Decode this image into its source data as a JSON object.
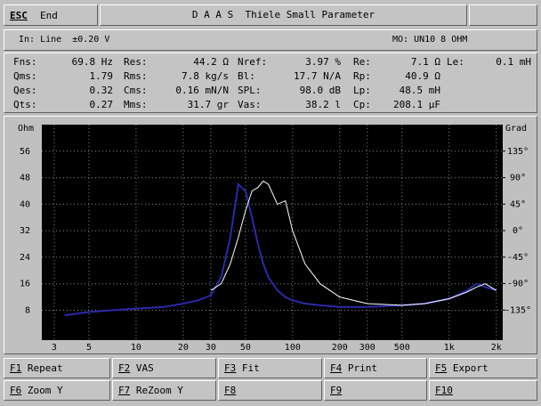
{
  "top_bar": {
    "escape_key": "ESC",
    "escape_label": "End",
    "title": "D A A S  Thiele Small Parameter"
  },
  "info_bar": {
    "input": "In: Line  ±0.20 V",
    "model": "MO: UN10 8 OHM"
  },
  "params": [
    [
      {
        "label": "Fns:",
        "value": "69.8 Hz"
      },
      {
        "label": "Res:",
        "value": "44.2 Ω"
      },
      {
        "label": "Nref:",
        "value": "3.97 %"
      },
      {
        "label": "Re:",
        "value": "7.1 Ω"
      },
      {
        "label": "Le:",
        "value": "0.1 mH"
      }
    ],
    [
      {
        "label": "Qms:",
        "value": "1.79"
      },
      {
        "label": "Rms:",
        "value": "7.8 kg/s"
      },
      {
        "label": "Bl:",
        "value": "17.7 N/A"
      },
      {
        "label": "Rp:",
        "value": "40.9 Ω"
      }
    ],
    [
      {
        "label": "Qes:",
        "value": "0.32"
      },
      {
        "label": "Cms:",
        "value": "0.16 mN/N"
      },
      {
        "label": "SPL:",
        "value": "98.0 dB"
      },
      {
        "label": "Lp:",
        "value": "48.5 mH"
      }
    ],
    [
      {
        "label": "Qts:",
        "value": "0.27"
      },
      {
        "label": "Mms:",
        "value": "31.7 gr"
      },
      {
        "label": "Vas:",
        "value": "38.2 l"
      },
      {
        "label": "Cp:",
        "value": "208.1 µF"
      }
    ]
  ],
  "chart_data": {
    "type": "line",
    "y_label": "Ohm",
    "y2_label": "Grad",
    "x_log": true,
    "grid": true,
    "xlim": [
      2.5,
      2200
    ],
    "xticks": [
      3,
      5,
      10,
      20,
      30,
      50,
      100,
      200,
      300,
      500,
      {
        "value": 1000,
        "label": "1k"
      },
      {
        "value": 2000,
        "label": "2k"
      }
    ],
    "ylim": [
      -1,
      64
    ],
    "yticks": [
      8,
      16,
      24,
      32,
      40,
      48,
      56
    ],
    "y2lim": [
      -186,
      180
    ],
    "y2ticks": [
      {
        "value": 135,
        "label": "135°"
      },
      {
        "value": 90,
        "label": "90°"
      },
      {
        "value": 45,
        "label": "45°"
      },
      {
        "value": 0,
        "label": "0°"
      },
      {
        "value": -45,
        "label": "-45°"
      },
      {
        "value": -90,
        "label": "-90°"
      },
      {
        "value": -135,
        "label": "-135°"
      }
    ],
    "x": [
      3.5,
      5,
      7,
      10,
      15,
      20,
      25,
      30,
      35,
      40,
      45,
      50,
      55,
      60,
      65,
      70,
      80,
      90,
      100,
      120,
      150,
      200,
      300,
      500,
      700,
      1000,
      1300,
      1500,
      1700,
      2000
    ],
    "series": [
      {
        "color": "#2a2aa8",
        "values": [
          6.5,
          7.5,
          8,
          8.5,
          9,
          10,
          11,
          12.5,
          18,
          30,
          46,
          44,
          36,
          28,
          22,
          18,
          14,
          12,
          11,
          10,
          9.5,
          9,
          9,
          9.5,
          10,
          11.5,
          14,
          16,
          15,
          14
        ]
      },
      {
        "color": "#ffffff",
        "values": [
          null,
          null,
          null,
          null,
          null,
          null,
          null,
          14,
          16,
          22,
          30,
          38,
          44,
          45,
          47,
          46,
          40,
          41,
          32,
          22,
          16,
          12,
          10,
          9.5,
          10,
          11.5,
          13.5,
          15,
          16,
          14
        ]
      }
    ]
  },
  "function_keys": [
    [
      {
        "key": "F1",
        "label": "Repeat"
      },
      {
        "key": "F2",
        "label": "VAS"
      },
      {
        "key": "F3",
        "label": "Fit"
      },
      {
        "key": "F4",
        "label": "Print"
      },
      {
        "key": "F5",
        "label": "Export"
      }
    ],
    [
      {
        "key": "F6",
        "label": "Zoom Y"
      },
      {
        "key": "F7",
        "label": "ReZoom Y"
      },
      {
        "key": "F8"
      },
      {
        "key": "F9"
      },
      {
        "key": "F10"
      }
    ]
  ]
}
